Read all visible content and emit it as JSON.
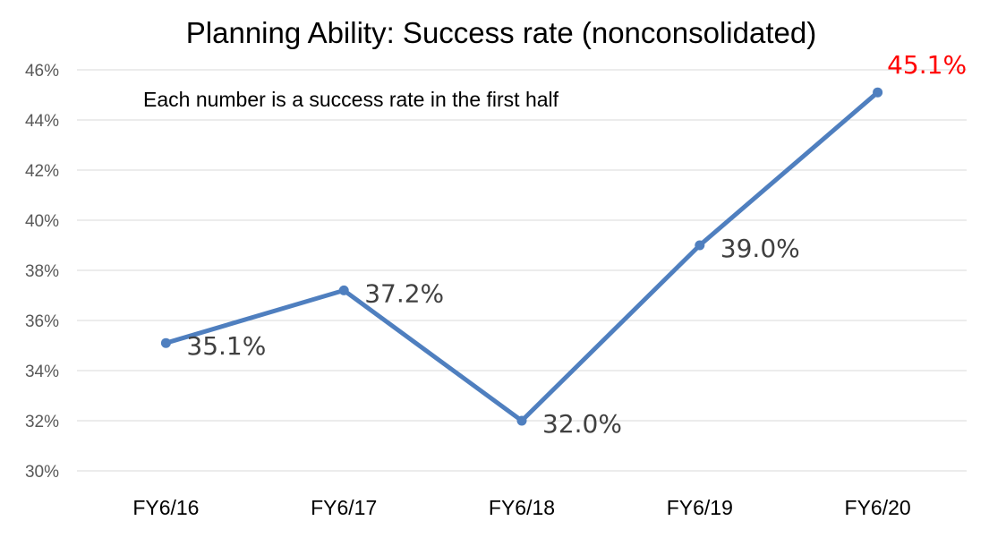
{
  "chart_data": {
    "type": "line",
    "title": "Planning Ability: Success rate (nonconsolidated)",
    "annotation": "Each number is a success rate in the first half",
    "categories": [
      "FY6/16",
      "FY6/17",
      "FY6/18",
      "FY6/19",
      "FY6/20"
    ],
    "series": [
      {
        "values": [
          35.1,
          37.2,
          32.0,
          39.0,
          45.1
        ],
        "data_labels": [
          "35.1%",
          "37.2%",
          "32.0%",
          "39.0%",
          "45.1%"
        ],
        "color": "#4f7fbf",
        "highlight_color": "#ff0000",
        "highlight_index": 4
      }
    ],
    "y_ticks": [
      "30%",
      "32%",
      "34%",
      "36%",
      "38%",
      "40%",
      "42%",
      "44%",
      "46%"
    ],
    "ylim": [
      30,
      46
    ],
    "y_unit": "%",
    "grid": true,
    "legend": "none"
  }
}
